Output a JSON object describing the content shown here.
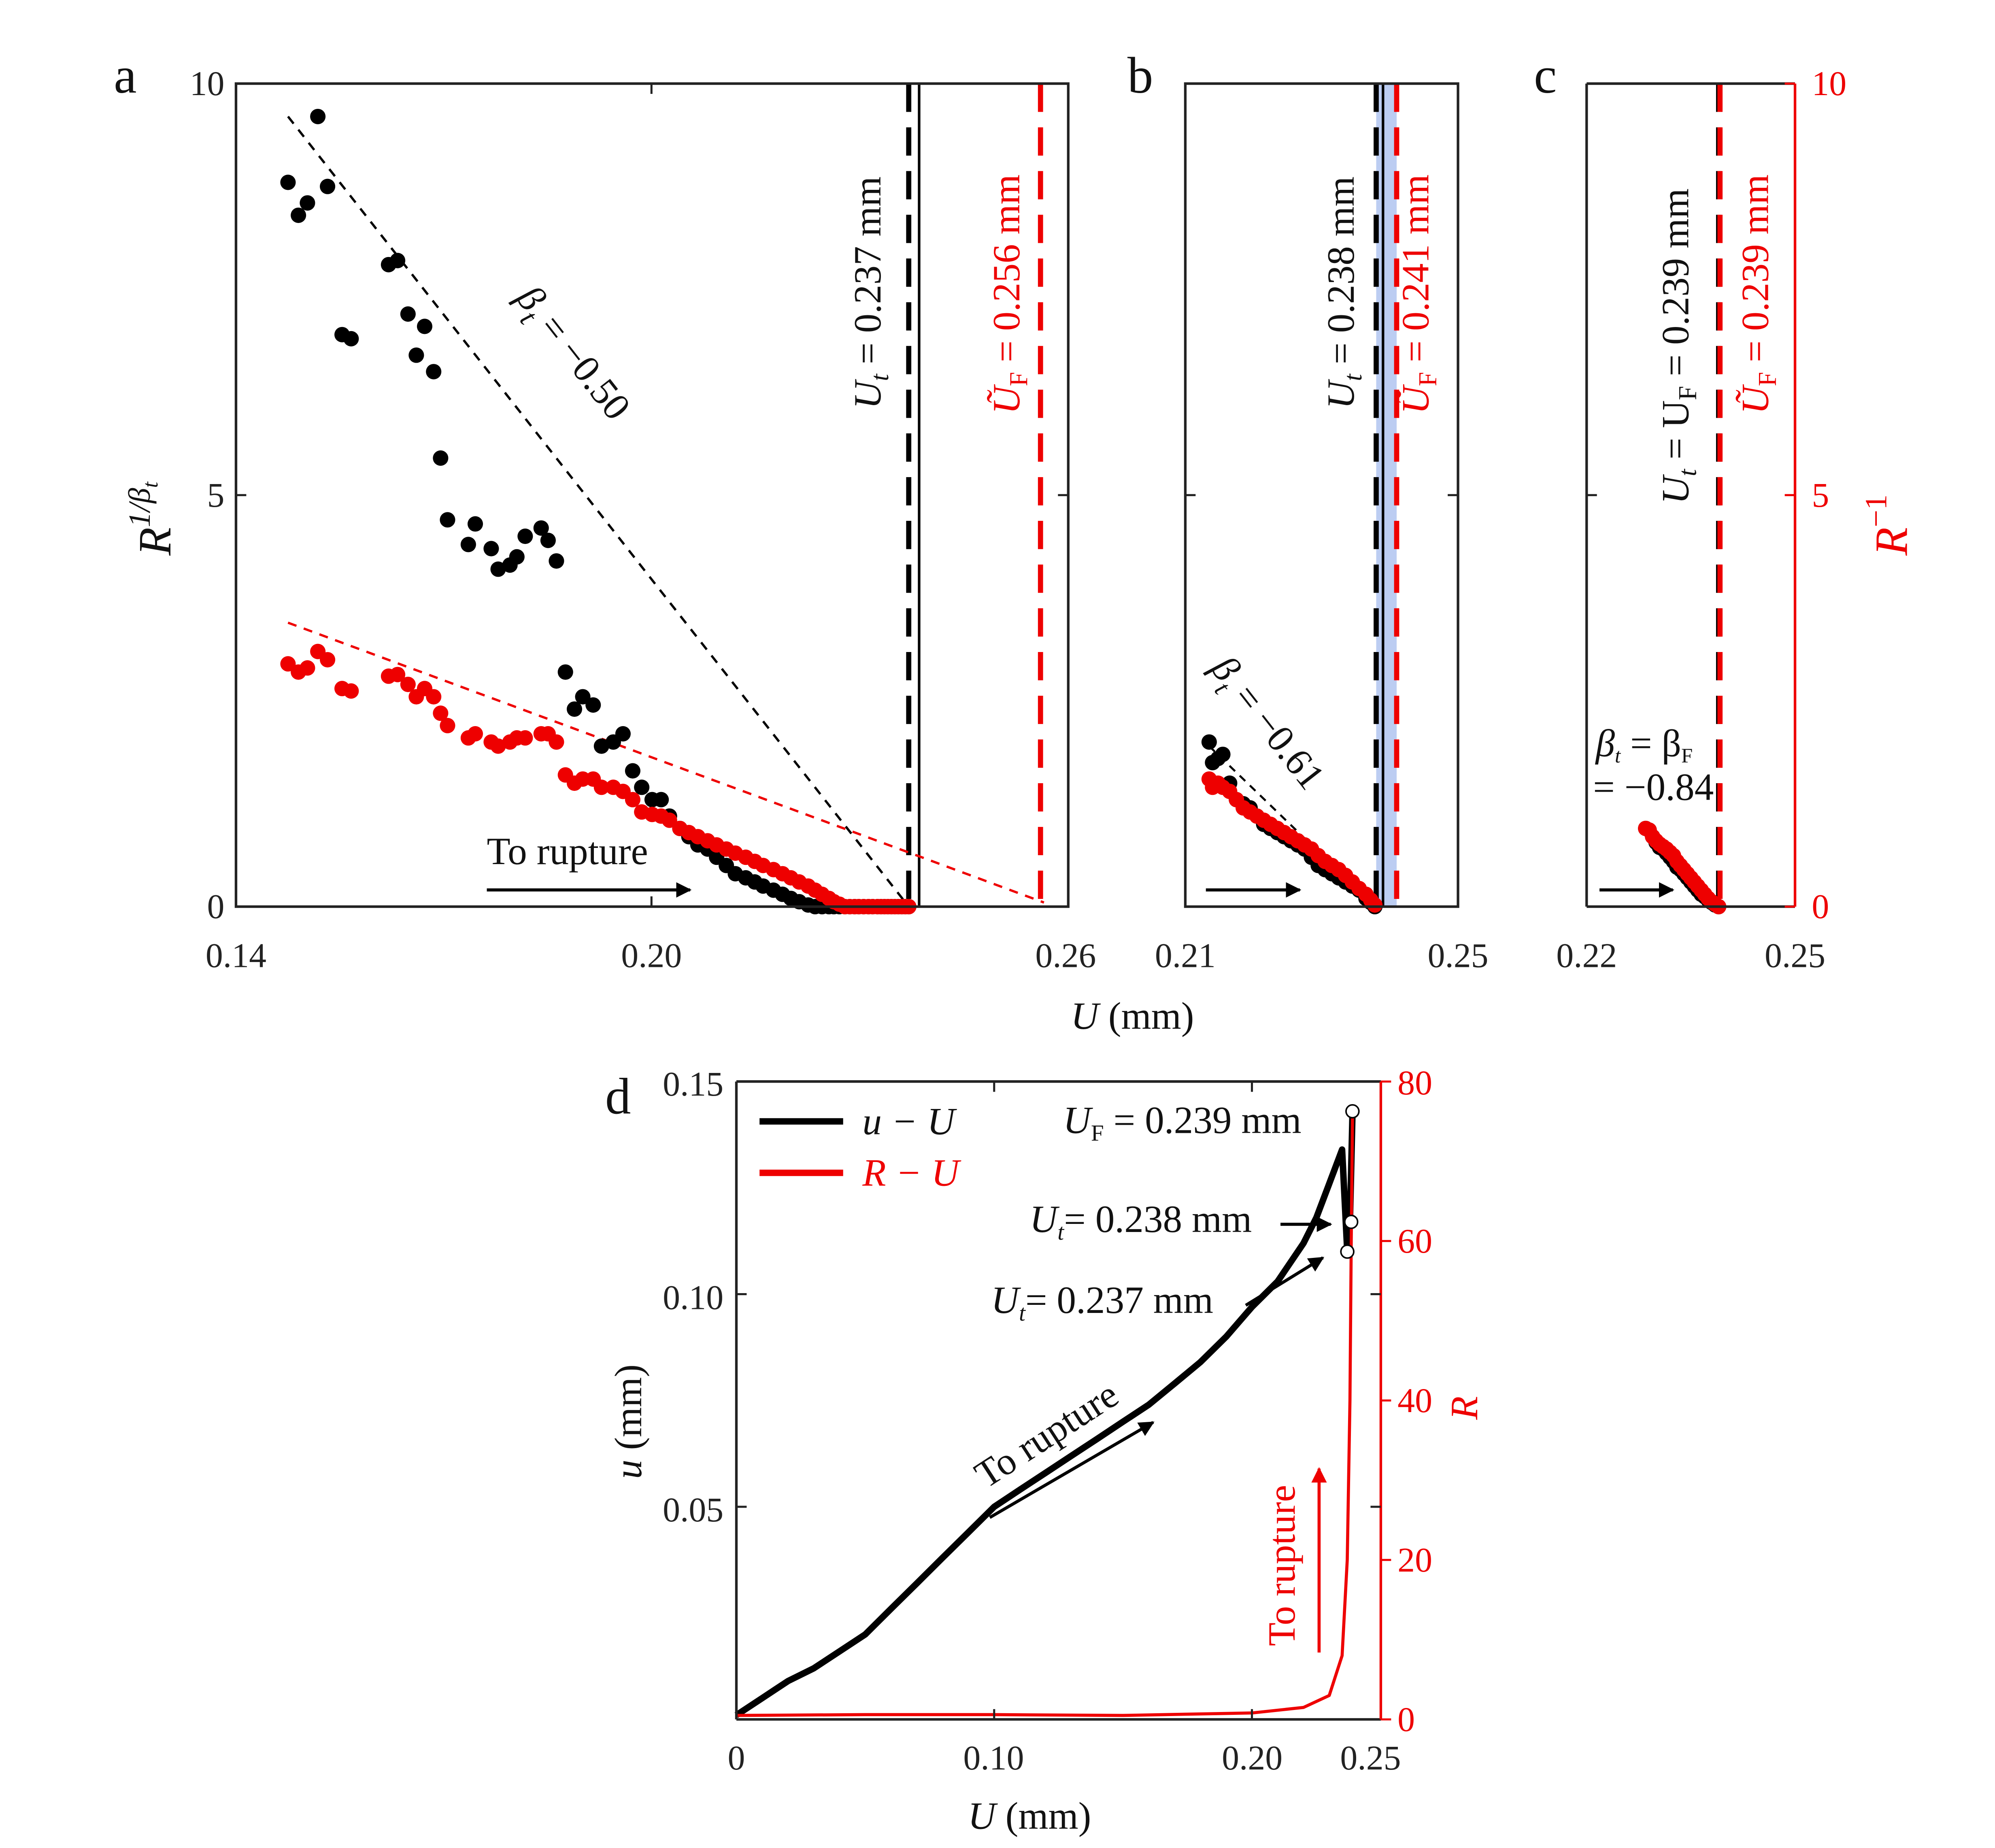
{
  "colors": {
    "black": "#000000",
    "red": "#ee0000",
    "band": "#b9cbf2",
    "axis": "#222222"
  },
  "chart_data": [
    {
      "id": "a",
      "panel_label": "a",
      "type": "scatter",
      "xlabel": "U (mm)",
      "ylabel": "R^{1/β_t}",
      "xlim": [
        0.14,
        0.26
      ],
      "ylim": [
        0,
        10
      ],
      "xticks": [
        "0.14",
        "0.20",
        "0.26"
      ],
      "yticks": [
        "0",
        "5",
        "10"
      ],
      "series": [
        {
          "name": "R^{1/βt} (black)",
          "color": "#000000",
          "x": [
            0.1475,
            0.149,
            0.1503,
            0.1518,
            0.1532,
            0.1553,
            0.1566,
            0.162,
            0.1633,
            0.1648,
            0.166,
            0.1672,
            0.1685,
            0.1695,
            0.1705,
            0.1735,
            0.1745,
            0.1768,
            0.1778,
            0.1795,
            0.1805,
            0.1817,
            0.184,
            0.185,
            0.1862,
            0.1875,
            0.1888,
            0.19,
            0.1915,
            0.1927,
            0.1944,
            0.1958,
            0.1972,
            0.1985,
            0.2,
            0.2013,
            0.2025,
            0.204,
            0.2053,
            0.2066,
            0.208,
            0.2093,
            0.2107,
            0.212,
            0.2135,
            0.2148,
            0.216,
            0.2175,
            0.2188,
            0.22,
            0.2212,
            0.2225,
            0.2235,
            0.2245,
            0.2255,
            0.2262,
            0.227,
            0.2278,
            0.2285,
            0.2292,
            0.2298,
            0.2305,
            0.2312,
            0.2318,
            0.2325,
            0.233,
            0.2335,
            0.234,
            0.2345,
            0.235,
            0.2355,
            0.236,
            0.2365,
            0.237
          ],
          "y": [
            8.8,
            8.4,
            8.55,
            9.6,
            8.75,
            6.95,
            6.9,
            7.8,
            7.85,
            7.2,
            6.7,
            7.05,
            6.5,
            5.45,
            4.7,
            4.4,
            4.65,
            4.35,
            4.1,
            4.15,
            4.25,
            4.5,
            4.6,
            4.45,
            4.2,
            2.85,
            2.4,
            2.55,
            2.45,
            1.95,
            2.0,
            2.1,
            1.65,
            1.45,
            1.3,
            1.3,
            1.1,
            0.95,
            0.85,
            0.75,
            0.7,
            0.6,
            0.5,
            0.4,
            0.35,
            0.3,
            0.25,
            0.2,
            0.15,
            0.1,
            0.06,
            0.02,
            0.0,
            0.0,
            0.0,
            0.0,
            0.0,
            0.0,
            0.0,
            0.0,
            0.0,
            0.0,
            0.0,
            0.0,
            0.0,
            0.0,
            0.0,
            0.0,
            0.0,
            0.0,
            0.0,
            0.0,
            0.0,
            0.0
          ]
        },
        {
          "name": "R^{1/βt} (red)",
          "color": "#ee0000",
          "x": [
            0.1475,
            0.149,
            0.1503,
            0.1518,
            0.1532,
            0.1553,
            0.1566,
            0.162,
            0.1633,
            0.1648,
            0.166,
            0.1672,
            0.1685,
            0.1695,
            0.1705,
            0.1735,
            0.1745,
            0.1768,
            0.1778,
            0.1795,
            0.1805,
            0.1817,
            0.184,
            0.185,
            0.1862,
            0.1875,
            0.1888,
            0.19,
            0.1915,
            0.1927,
            0.1944,
            0.1958,
            0.1972,
            0.1985,
            0.2,
            0.2013,
            0.2025,
            0.204,
            0.2053,
            0.2066,
            0.208,
            0.2093,
            0.2107,
            0.212,
            0.2135,
            0.2148,
            0.216,
            0.2175,
            0.2188,
            0.22,
            0.2212,
            0.2225,
            0.2235,
            0.2245,
            0.2255,
            0.2262,
            0.227,
            0.2278,
            0.2285,
            0.2292,
            0.2298,
            0.2305,
            0.2312,
            0.2318,
            0.2325,
            0.233,
            0.2335,
            0.234,
            0.2345,
            0.235,
            0.2355,
            0.236,
            0.2365,
            0.237
          ],
          "y": [
            2.95,
            2.85,
            2.9,
            3.1,
            3.0,
            2.65,
            2.62,
            2.8,
            2.82,
            2.7,
            2.55,
            2.65,
            2.55,
            2.35,
            2.2,
            2.05,
            2.1,
            2.0,
            1.95,
            2.0,
            2.05,
            2.05,
            2.1,
            2.1,
            2.0,
            1.6,
            1.5,
            1.55,
            1.55,
            1.45,
            1.45,
            1.4,
            1.3,
            1.15,
            1.12,
            1.1,
            1.05,
            0.95,
            0.9,
            0.85,
            0.8,
            0.75,
            0.7,
            0.65,
            0.6,
            0.55,
            0.5,
            0.45,
            0.4,
            0.35,
            0.3,
            0.25,
            0.2,
            0.15,
            0.1,
            0.06,
            0.03,
            0.0,
            0.0,
            0.0,
            0.0,
            0.0,
            0.0,
            0.0,
            0.0,
            0.0,
            0.0,
            0.0,
            0.0,
            0.0,
            0.0,
            0.0,
            0.0,
            0.0
          ]
        }
      ],
      "fit_lines": [
        {
          "name": "black fit",
          "color": "#000000",
          "x": [
            0.1475,
            0.237
          ],
          "y": [
            9.6,
            0.0
          ]
        },
        {
          "name": "red fit",
          "color": "#ee0000",
          "x": [
            0.1475,
            0.2565
          ],
          "y": [
            3.45,
            0.05
          ]
        }
      ],
      "vlines": [
        {
          "x": 0.237,
          "style": "dashed",
          "color": "#000000",
          "label": "U_t = 0.237 mm"
        },
        {
          "x": 0.2385,
          "style": "solid",
          "color": "#000000"
        },
        {
          "x": 0.256,
          "style": "dashed",
          "color": "#ee0000",
          "label": "Ũ_F = 0.256 mm"
        }
      ],
      "band": [
        0.237,
        0.256
      ],
      "annotations": [
        {
          "text": "β_t = −0.50"
        },
        {
          "text": "To rupture"
        }
      ]
    },
    {
      "id": "b",
      "panel_label": "b",
      "type": "scatter",
      "xlim": [
        0.21,
        0.25
      ],
      "ylim": [
        0,
        10
      ],
      "xticks": [
        "0.21",
        "0.25"
      ],
      "vlines": [
        {
          "x": 0.238,
          "style": "dashed",
          "color": "#000000",
          "label": "U_t = 0.238 mm"
        },
        {
          "x": 0.239,
          "style": "solid",
          "color": "#000000"
        },
        {
          "x": 0.241,
          "style": "dashed",
          "color": "#ee0000",
          "label": "Ũ_F = 0.241 mm"
        }
      ],
      "band": [
        0.238,
        0.241
      ],
      "annotations": [
        {
          "text": "β_t = −0.61"
        }
      ],
      "series": [
        {
          "name": "black",
          "color": "#000000",
          "x": [
            0.2135,
            0.214,
            0.2148,
            0.2155,
            0.2165,
            0.2175,
            0.2185,
            0.2195,
            0.2205,
            0.2215,
            0.2225,
            0.2235,
            0.2245,
            0.2255,
            0.2265,
            0.2275,
            0.2285,
            0.2295,
            0.2305,
            0.2315,
            0.2325,
            0.2335,
            0.2345,
            0.2355,
            0.2365,
            0.2372,
            0.2378
          ],
          "y": [
            2.0,
            1.75,
            1.8,
            1.85,
            1.5,
            1.3,
            1.25,
            1.2,
            1.1,
            1.0,
            0.95,
            0.9,
            0.85,
            0.8,
            0.75,
            0.7,
            0.6,
            0.5,
            0.45,
            0.4,
            0.35,
            0.3,
            0.25,
            0.2,
            0.1,
            0.05,
            0.0
          ]
        },
        {
          "name": "red",
          "color": "#ee0000",
          "x": [
            0.2135,
            0.214,
            0.2148,
            0.2155,
            0.2165,
            0.2175,
            0.2185,
            0.2195,
            0.2205,
            0.2215,
            0.2225,
            0.2235,
            0.2245,
            0.2255,
            0.2265,
            0.2275,
            0.2285,
            0.2295,
            0.2305,
            0.2315,
            0.2325,
            0.2335,
            0.2345,
            0.2355,
            0.2365,
            0.2372,
            0.2378
          ],
          "y": [
            1.55,
            1.45,
            1.5,
            1.45,
            1.4,
            1.3,
            1.2,
            1.15,
            1.1,
            1.05,
            1.0,
            0.95,
            0.9,
            0.85,
            0.8,
            0.75,
            0.7,
            0.62,
            0.55,
            0.5,
            0.45,
            0.38,
            0.3,
            0.22,
            0.15,
            0.08,
            0.02
          ]
        }
      ]
    },
    {
      "id": "c",
      "panel_label": "c",
      "type": "scatter",
      "xlim": [
        0.22,
        0.25
      ],
      "ylim": [
        0,
        10
      ],
      "xticks": [
        "0.22",
        "0.25"
      ],
      "y2ticks": [
        "0",
        "5",
        "10"
      ],
      "y2label": "R^{−1}",
      "vlines": [
        {
          "x": 0.239,
          "style": "dashed",
          "color": "#000000",
          "label": "U_t = U_F = 0.239 mm"
        },
        {
          "x": 0.2392,
          "style": "dashed",
          "color": "#ee0000",
          "label": "Ũ_F = 0.239 mm"
        }
      ],
      "annotations": [
        {
          "text": "β_t = β_F"
        },
        {
          "text": "= −0.84"
        }
      ],
      "series": [
        {
          "name": "black",
          "color": "#000000",
          "x": [
            0.2285,
            0.229,
            0.2295,
            0.23,
            0.2305,
            0.231,
            0.2315,
            0.232,
            0.2325,
            0.233,
            0.2335,
            0.234,
            0.2345,
            0.235,
            0.2355,
            0.236,
            0.2365,
            0.237,
            0.2375,
            0.238,
            0.2385,
            0.239
          ],
          "y": [
            0.95,
            0.93,
            0.85,
            0.78,
            0.72,
            0.7,
            0.65,
            0.6,
            0.55,
            0.48,
            0.45,
            0.4,
            0.35,
            0.3,
            0.25,
            0.2,
            0.15,
            0.12,
            0.08,
            0.05,
            0.02,
            0.0
          ]
        },
        {
          "name": "red",
          "color": "#ee0000",
          "x": [
            0.2285,
            0.229,
            0.2295,
            0.23,
            0.2305,
            0.231,
            0.2315,
            0.232,
            0.2325,
            0.233,
            0.2335,
            0.234,
            0.2345,
            0.235,
            0.2355,
            0.236,
            0.2365,
            0.237,
            0.2375,
            0.238,
            0.2385,
            0.239
          ],
          "y": [
            0.95,
            0.93,
            0.85,
            0.8,
            0.76,
            0.73,
            0.7,
            0.66,
            0.62,
            0.55,
            0.5,
            0.45,
            0.4,
            0.35,
            0.3,
            0.25,
            0.2,
            0.15,
            0.1,
            0.06,
            0.03,
            0.0
          ]
        }
      ]
    },
    {
      "id": "d",
      "panel_label": "d",
      "type": "line",
      "xlabel": "U (mm)",
      "ylabel": "u (mm)",
      "y2label": "R",
      "xlim": [
        0,
        0.25
      ],
      "ylim": [
        0,
        0.15
      ],
      "y2lim": [
        0,
        80
      ],
      "xticks": [
        "0",
        "0.10",
        "0.20",
        "0.25"
      ],
      "yticks": [
        "0.05",
        "0.10",
        "0.15"
      ],
      "y2ticks": [
        "0",
        "20",
        "40",
        "60",
        "80"
      ],
      "legend": [
        {
          "label": "u − U",
          "color": "#000000"
        },
        {
          "label": "R − U",
          "color": "#ee0000"
        }
      ],
      "legend_position": "top-left",
      "series": [
        {
          "name": "u − U",
          "color": "#000000",
          "axis": "left",
          "x": [
            0,
            0.01,
            0.02,
            0.03,
            0.04,
            0.05,
            0.06,
            0.07,
            0.08,
            0.09,
            0.1,
            0.11,
            0.12,
            0.13,
            0.14,
            0.15,
            0.16,
            0.17,
            0.18,
            0.19,
            0.2,
            0.21,
            0.22,
            0.225,
            0.23,
            0.235,
            0.237,
            0.238,
            0.239
          ],
          "y": [
            0.001,
            0.005,
            0.009,
            0.012,
            0.016,
            0.02,
            0.026,
            0.032,
            0.038,
            0.044,
            0.05,
            0.054,
            0.058,
            0.062,
            0.066,
            0.07,
            0.074,
            0.079,
            0.084,
            0.09,
            0.097,
            0.103,
            0.112,
            0.118,
            0.126,
            0.134,
            0.11,
            0.117,
            0.143
          ]
        },
        {
          "name": "R − U",
          "color": "#ee0000",
          "axis": "right",
          "x": [
            0,
            0.05,
            0.1,
            0.15,
            0.2,
            0.22,
            0.23,
            0.235,
            0.237,
            0.238,
            0.2385,
            0.239
          ],
          "y": [
            0.5,
            0.6,
            0.6,
            0.5,
            0.8,
            1.5,
            3,
            8,
            20,
            40,
            60,
            76
          ]
        }
      ],
      "markers": [
        {
          "x": 0.239,
          "y": 0.143,
          "label": "U_F = 0.239 mm"
        },
        {
          "x": 0.2385,
          "y": 0.117,
          "label": "U_t = 0.238 mm"
        },
        {
          "x": 0.237,
          "y": 0.11,
          "label": "U_t = 0.237 mm"
        }
      ],
      "annotations": [
        {
          "text": "To rupture",
          "color": "#000000"
        },
        {
          "text": "To rupture",
          "color": "#ee0000"
        }
      ]
    }
  ],
  "text": {
    "a_label": "a",
    "b_label": "b",
    "c_label": "c",
    "d_label": "d",
    "a_xt0": "0.14",
    "a_xt1": "0.20",
    "a_xt2": "0.26",
    "a_yt0": "0",
    "a_yt1": "5",
    "a_yt2": "10",
    "b_xt0": "0.21",
    "b_xt1": "0.25",
    "c_xt0": "0.22",
    "c_xt1": "0.25",
    "c_y2t0": "0",
    "c_y2t1": "5",
    "c_y2t2": "10",
    "x_label_U": "U",
    "x_label_mm": " (mm)",
    "a_vline1_U": "U",
    "a_vline1_sub": "t",
    "a_vline1_val": " = 0.237 mm",
    "a_vline2_U": "Ũ",
    "a_vline2_sub": "F",
    "a_vline2_val": " = 0.256 mm",
    "b_vline1_U": "U",
    "b_vline1_sub": "t",
    "b_vline1_val": " = 0.238 mm",
    "b_vline2_U": "Ũ",
    "b_vline2_sub": "F",
    "b_vline2_val": " = 0.241 mm",
    "c_vline1_pre": "U",
    "c_vline1_sub": "t",
    "c_vline1_mid": " = U",
    "c_vline1_sub2": "F",
    "c_vline1_val": " = 0.239 mm",
    "c_vline2_U": "Ũ",
    "c_vline2_sub": "F",
    "c_vline2_val": " = 0.239 mm",
    "a_beta_sym": "β",
    "a_beta_sub": "t",
    "a_beta_val": " = −0.50",
    "b_beta_sym": "β",
    "b_beta_sub": "t",
    "b_beta_val": " = −0.61",
    "c_beta_line1_a": "β",
    "c_beta_line1_sub": "t",
    "c_beta_line1_b": " = β",
    "c_beta_line1_sub2": "F",
    "c_beta_line2": "= −0.84",
    "to_rupture": "To rupture",
    "a_ylabel_R": "R",
    "a_ylabel_exp": "1/β",
    "a_ylabel_sub": "t",
    "c_y2label_R": "R",
    "c_y2label_exp": "−1",
    "d_xt0": "0",
    "d_xt1": "0.10",
    "d_xt2": "0.20",
    "d_xt3": "0.25",
    "d_yt1": "0.05",
    "d_yt2": "0.10",
    "d_yt3": "0.15",
    "d_y2t0": "0",
    "d_y2t1": "20",
    "d_y2t2": "40",
    "d_y2t3": "60",
    "d_y2t4": "80",
    "d_ylabel_u": "u",
    "d_ylabel_mm": " (mm)",
    "d_y2label": "R",
    "legend1": "u − U",
    "legend2": "R − U",
    "d_ann_F_U": "U",
    "d_ann_F_sub": "F",
    "d_ann_F_val": " = 0.239 mm",
    "d_ann_t1_U": "U",
    "d_ann_t1_sub": "t",
    "d_ann_t1_val": "= 0.238 mm",
    "d_ann_t2_U": "U",
    "d_ann_t2_sub": "t",
    "d_ann_t2_val": "= 0.237 mm"
  }
}
